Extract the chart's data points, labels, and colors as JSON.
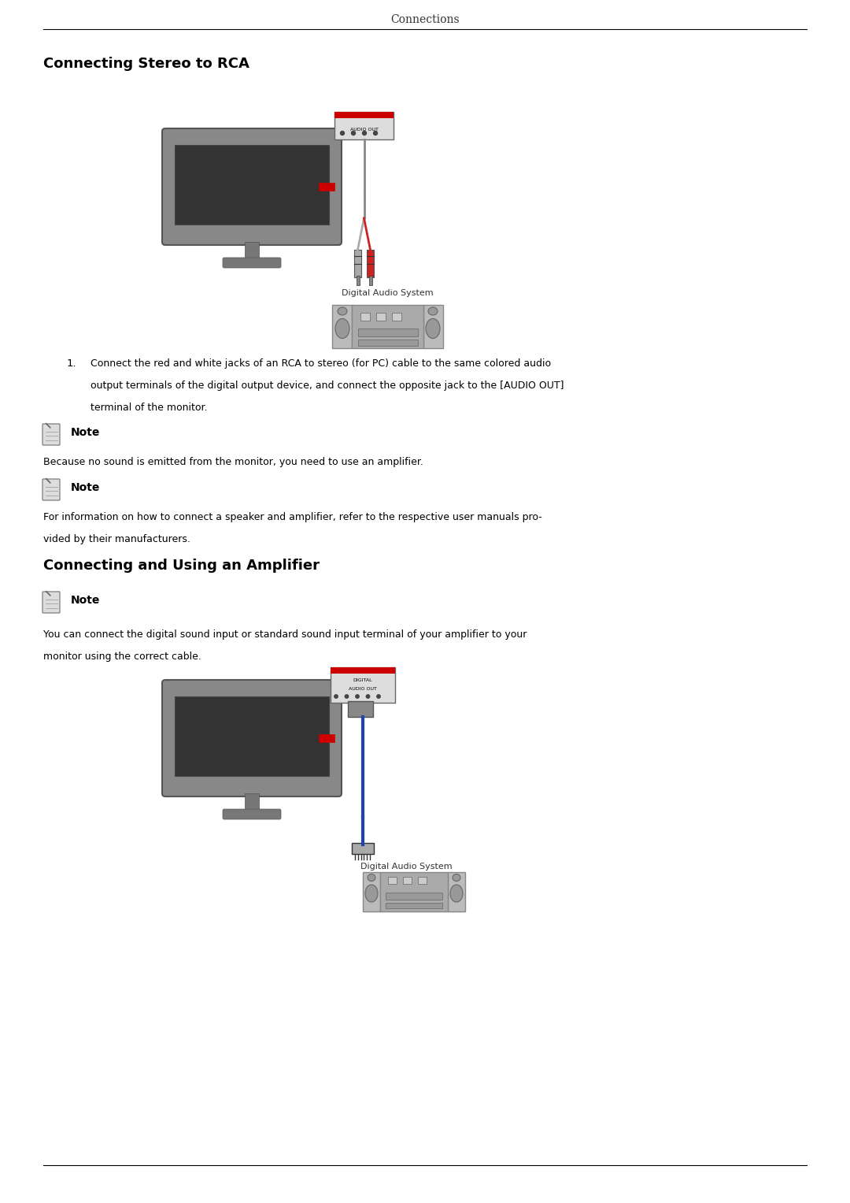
{
  "page_title": "Connections",
  "section1_title": "Connecting Stereo to RCA",
  "section2_title": "Connecting and Using an Amplifier",
  "note_label": "Note",
  "note1_text": "Because no sound is emitted from the monitor, you need to use an amplifier.",
  "note2_text": "For information on how to connect a speaker and amplifier, refer to the respective user manuals pro-\nvided by their manufacturers.",
  "note3_text": "You can connect the digital sound input or standard sound input terminal of your amplifier to your\nmonitor using the correct cable.",
  "bg_color": "#ffffff",
  "text_color": "#000000",
  "line_color": "#000000",
  "digital_audio_label": "Digital Audio System"
}
